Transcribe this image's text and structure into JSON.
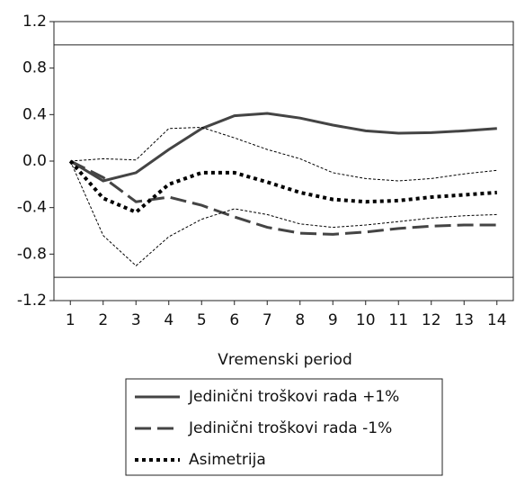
{
  "chart_data": {
    "type": "line",
    "x_label": "Vremenski period",
    "categories": [
      "1",
      "2",
      "3",
      "4",
      "5",
      "6",
      "7",
      "8",
      "9",
      "10",
      "11",
      "12",
      "13",
      "14"
    ],
    "ylim": [
      -1.2,
      1.2
    ],
    "yticks": [
      {
        "value": 1.2,
        "label": "1.2"
      },
      {
        "value": 0.8,
        "label": "0.8"
      },
      {
        "value": 0.4,
        "label": "0.4"
      },
      {
        "value": 0,
        "label": "0.0"
      },
      {
        "value": -0.4,
        "label": "-0.4"
      },
      {
        "value": -0.8,
        "label": "-0.8"
      },
      {
        "value": -1.2,
        "label": "-1.2"
      }
    ],
    "reference_lines": [
      1,
      -1
    ],
    "series": [
      {
        "name": "Jedinični troškovi rada +1%",
        "color": "#444444",
        "width": 3,
        "dash": "none",
        "values": [
          0,
          -0.17,
          -0.1,
          0.1,
          0.28,
          0.39,
          0.41,
          0.37,
          0.31,
          0.26,
          0.24,
          0.245,
          0.26,
          0.28
        ]
      },
      {
        "name": "Jedinični troškovi rada -1%",
        "color": "#444444",
        "width": 3,
        "dash": "18 7",
        "values": [
          0,
          -0.14,
          -0.35,
          -0.31,
          -0.38,
          -0.48,
          -0.57,
          -0.62,
          -0.63,
          -0.61,
          -0.58,
          -0.56,
          -0.55,
          -0.55
        ]
      },
      {
        "name": "Asimetrija",
        "color": "#000000",
        "width": 4,
        "dash": "4 4",
        "values": [
          0,
          -0.32,
          -0.44,
          -0.2,
          -0.1,
          -0.1,
          -0.18,
          -0.27,
          -0.33,
          -0.35,
          -0.34,
          -0.31,
          -0.29,
          -0.27
        ]
      },
      {
        "color": "#000000",
        "width": 1,
        "dash": "3 2",
        "values": [
          0,
          0.02,
          0.01,
          0.28,
          0.29,
          0.2,
          0.1,
          0.02,
          -0.1,
          -0.15,
          -0.17,
          -0.15,
          -0.11,
          -0.08
        ]
      },
      {
        "color": "#000000",
        "width": 1,
        "dash": "3 2",
        "values": [
          0,
          -0.64,
          -0.9,
          -0.65,
          -0.5,
          -0.41,
          -0.46,
          -0.54,
          -0.57,
          -0.55,
          -0.52,
          -0.49,
          -0.47,
          -0.46
        ]
      }
    ]
  }
}
